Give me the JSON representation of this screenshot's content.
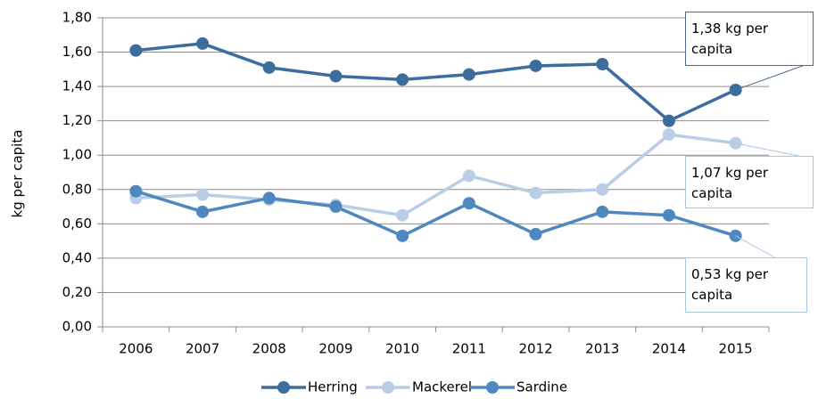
{
  "chart_data": {
    "type": "line",
    "y_label": "kg per capita",
    "categories": [
      "2006",
      "2007",
      "2008",
      "2009",
      "2010",
      "2011",
      "2012",
      "2013",
      "2014",
      "2015"
    ],
    "series": [
      {
        "name": "Herring",
        "color": "#3d6c9e",
        "values": [
          1.61,
          1.65,
          1.51,
          1.46,
          1.44,
          1.47,
          1.52,
          1.53,
          1.2,
          1.38
        ]
      },
      {
        "name": "Mackerel",
        "color": "#b9cee6",
        "values": [
          0.75,
          0.77,
          0.74,
          0.71,
          0.65,
          0.88,
          0.78,
          0.8,
          1.12,
          1.07
        ]
      },
      {
        "name": "Sardine",
        "color": "#4f87bf",
        "values": [
          0.79,
          0.67,
          0.75,
          0.7,
          0.53,
          0.72,
          0.54,
          0.67,
          0.65,
          0.53
        ]
      }
    ],
    "ylim": [
      0,
      1.8
    ],
    "yticks": [
      {
        "value": 0,
        "label": "0,00"
      },
      {
        "value": 0.2,
        "label": "0,20"
      },
      {
        "value": 0.4,
        "label": "0,40"
      },
      {
        "value": 0.6,
        "label": "0,60"
      },
      {
        "value": 0.8,
        "label": "0,80"
      },
      {
        "value": 1.0,
        "label": "1,00"
      },
      {
        "value": 1.2,
        "label": "1,20"
      },
      {
        "value": 1.4,
        "label": "1,40"
      },
      {
        "value": 1.6,
        "label": "1,60"
      },
      {
        "value": 1.8,
        "label": "1,80"
      }
    ],
    "grid": true,
    "legend": "bottom",
    "annotations": [
      {
        "text": "1,38 kg per capita"
      },
      {
        "text": "1,07 kg per capita"
      },
      {
        "text": "0,53 kg per capita"
      }
    ]
  }
}
